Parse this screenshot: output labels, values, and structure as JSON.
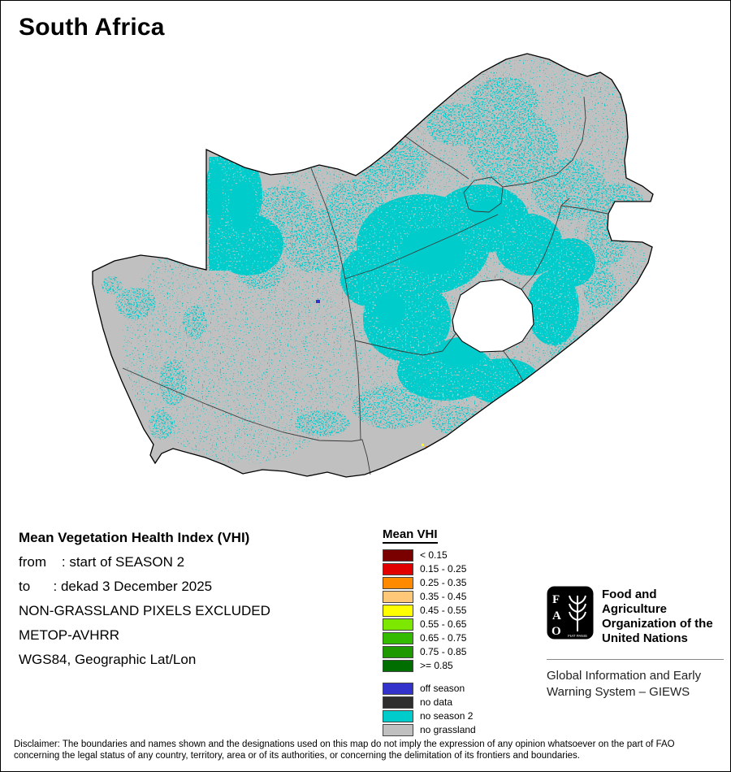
{
  "page": {
    "title": "South Africa"
  },
  "info": {
    "heading": "Mean Vegetation Health Index (VHI)",
    "lines": [
      "from    : start of SEASON 2",
      "to      : dekad 3 December 2025",
      "NON-GRASSLAND PIXELS EXCLUDED",
      "METOP-AVHRR",
      "WGS84, Geographic Lat/Lon"
    ]
  },
  "legend": {
    "title": "Mean VHI",
    "classes": [
      {
        "label": "< 0.15",
        "color": "#7A0000"
      },
      {
        "label": "0.15 - 0.25",
        "color": "#E00000"
      },
      {
        "label": "0.25 - 0.35",
        "color": "#FF8A00"
      },
      {
        "label": "0.35 - 0.45",
        "color": "#FFC878"
      },
      {
        "label": "0.45 - 0.55",
        "color": "#FFFF00"
      },
      {
        "label": "0.55 - 0.65",
        "color": "#7CE700"
      },
      {
        "label": "0.65 - 0.75",
        "color": "#33BB00"
      },
      {
        "label": "0.75 - 0.85",
        "color": "#1E9A00"
      },
      {
        "label": ">= 0.85",
        "color": "#006E00"
      }
    ],
    "extra": [
      {
        "label": "off season",
        "color": "#3333CC"
      },
      {
        "label": "no data",
        "color": "#2E2E2E"
      },
      {
        "label": "no season 2",
        "color": "#00CCCC"
      },
      {
        "label": "no grassland",
        "color": "#C0C0C0"
      }
    ]
  },
  "map": {
    "country": "South Africa",
    "colors": {
      "no_grassland": "#C0C0C0",
      "no_season_2": "#00CCCC",
      "off_season": "#3333CC",
      "boundary": "#000000",
      "province_line": "#3A3A3A",
      "background": "#FFFFFF"
    }
  },
  "branding": {
    "logo_letters": [
      "F",
      "A",
      "O"
    ],
    "logo_motto": "FIAT PANIS",
    "org_name": "Food and Agriculture Organization of the United Nations",
    "program": "Global Information and Early Warning System – GIEWS"
  },
  "disclaimer": "Disclaimer: The boundaries and names shown and the designations used on this map do not imply the expression of any opinion whatsoever on the part of FAO concerning the legal status of any country, territory, area or of its authorities, or concerning the delimitation of its frontiers and boundaries."
}
